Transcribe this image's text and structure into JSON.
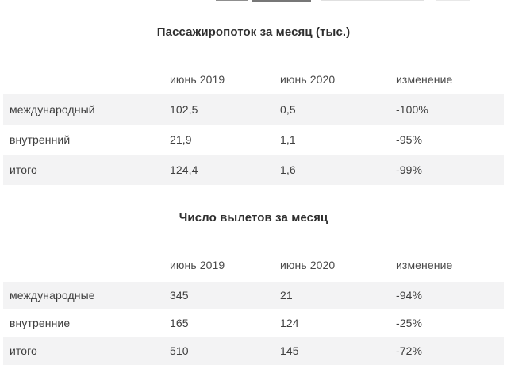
{
  "colors": {
    "background": "#ffffff",
    "row_stripe": "#f3f3f4",
    "title_text": "#2f2f2f",
    "body_text": "#3f3f3f",
    "header_text": "#4a4a4a"
  },
  "chart_data": [
    {
      "type": "table",
      "title": "Пассажиропоток за месяц (тыс.)",
      "columns": [
        "июнь 2019",
        "июнь 2020",
        "изменение"
      ],
      "rows": [
        [
          "международный",
          "102,5",
          "0,5",
          "-100%"
        ],
        [
          "внутренний",
          "21,9",
          "1,1",
          "-95%"
        ],
        [
          "итого",
          "124,4",
          "1,6",
          "-99%"
        ]
      ],
      "layout": {
        "stripe_pattern": "odd-rows-shaded",
        "grid": "off",
        "value_alignment": "left"
      }
    },
    {
      "type": "table",
      "title": "Число вылетов за месяц",
      "columns": [
        "июнь 2019",
        "июнь 2020",
        "изменение"
      ],
      "rows": [
        [
          "международные",
          "345",
          "21",
          "-94%"
        ],
        [
          "внутренние",
          "165",
          "124",
          "-25%"
        ],
        [
          "итого",
          "510",
          "145",
          "-72%"
        ]
      ],
      "layout": {
        "stripe_pattern": "odd-rows-shaded",
        "grid": "off",
        "value_alignment": "left"
      }
    }
  ]
}
